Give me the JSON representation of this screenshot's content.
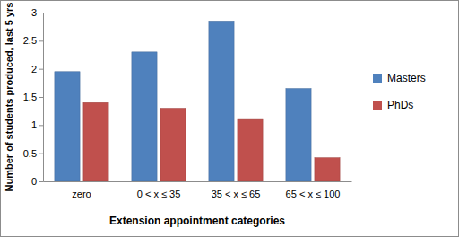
{
  "chart_data": {
    "type": "bar",
    "categories": [
      "zero",
      "0 < x ≤ 35",
      "35 < x ≤ 65",
      "65 < x ≤ 100"
    ],
    "series": [
      {
        "name": "Masters",
        "color": "#4f81bd",
        "values": [
          1.95,
          2.3,
          2.85,
          1.65
        ]
      },
      {
        "name": "PhDs",
        "color": "#c0504d",
        "values": [
          1.4,
          1.3,
          1.1,
          0.42
        ]
      }
    ],
    "x_label": "Extension appointment categories",
    "y_label": "Number of students produced, last 5 yrs",
    "ylim": [
      0,
      3
    ],
    "yticks": [
      0,
      0.5,
      1,
      1.5,
      2,
      2.5,
      3
    ],
    "grid": false,
    "legend": "right"
  }
}
